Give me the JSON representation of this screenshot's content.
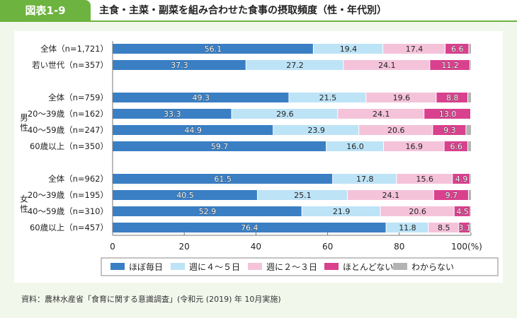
{
  "header": {
    "figure_number": "図表1-9",
    "title": "主食・主菜・副菜を組み合わせた食事の摂取頻度（性・年代別）"
  },
  "source_note": "資料：農林水産省「食育に関する意識調査」(令和元 (2019) 年 10月実施)",
  "chart_data": {
    "type": "bar",
    "orientation": "horizontal",
    "stacked": true,
    "title": "主食・主菜・副菜を組み合わせた食事の摂取頻度（性・年代別）",
    "xlabel": "",
    "xlim": [
      0,
      100
    ],
    "x_ticks": [
      "0",
      "20",
      "40",
      "60",
      "80",
      "100(%)"
    ],
    "x_tick_values": [
      0,
      20,
      40,
      60,
      80,
      100
    ],
    "legend_position": "bottom",
    "groups": [
      {
        "name": "",
        "rows": [
          0,
          1
        ]
      },
      {
        "name": "男性",
        "rows": [
          2,
          3,
          4,
          5
        ]
      },
      {
        "name": "女性",
        "rows": [
          6,
          7,
          8,
          9
        ]
      }
    ],
    "categories": [
      "全体（n=1,721）",
      "若い世代（n=357）",
      "全体（n=759）",
      "20～39歳（n=162）",
      "40～59歳（n=247）",
      "60歳以上（n=350）",
      "全体（n=962）",
      "20～39歳（n=195）",
      "40～59歳（n=310）",
      "60歳以上（n=457）"
    ],
    "series": [
      {
        "name": "ほぼ毎日",
        "color": "#3a7fc4",
        "label_color": "#ffffff",
        "values": [
          56.1,
          37.3,
          49.3,
          33.3,
          44.9,
          59.7,
          61.5,
          40.5,
          52.9,
          76.4
        ]
      },
      {
        "name": "週に４～５日",
        "color": "#bde3f6",
        "label_color": "#222222",
        "values": [
          19.4,
          27.2,
          21.5,
          29.6,
          23.9,
          16.0,
          17.8,
          25.1,
          21.9,
          11.8
        ]
      },
      {
        "name": "週に２～３日",
        "color": "#f4c3da",
        "label_color": "#222222",
        "values": [
          17.4,
          24.1,
          19.6,
          24.1,
          20.6,
          16.9,
          15.6,
          24.1,
          20.6,
          8.5
        ]
      },
      {
        "name": "ほとんどない",
        "color": "#d9418e",
        "label_color": "#ffffff",
        "values": [
          6.6,
          11.2,
          8.8,
          13.0,
          9.3,
          6.6,
          4.9,
          9.7,
          4.5,
          3.1
        ]
      },
      {
        "name": "わからない",
        "color": "#b3b3b3",
        "label_color": "#222222",
        "values": [
          0.5,
          0.2,
          0.8,
          0.0,
          1.3,
          0.8,
          0.2,
          0.6,
          0.1,
          0.2
        ],
        "labels_shown": false
      }
    ]
  }
}
